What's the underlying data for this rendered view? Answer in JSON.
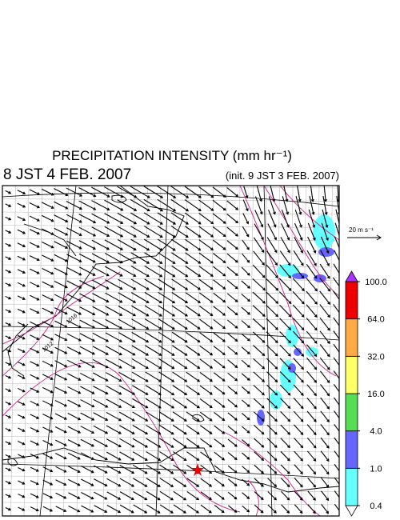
{
  "title": "PRECIPITATION INTENSITY (mm hr⁻¹)",
  "valid_time": "8 JST 4 FEB. 2007",
  "init_time": "(init. 9 JST 3 FEB. 2007)",
  "vector_scale": "20 m s⁻¹",
  "contour_labels": [
    "1016",
    "1012"
  ],
  "colorbar": {
    "levels": [
      {
        "value": 0.4,
        "label": "0.4"
      },
      {
        "value": 1,
        "label": "1.0"
      },
      {
        "value": 4,
        "label": "4.0"
      },
      {
        "value": 16,
        "label": "16.0"
      },
      {
        "value": 32,
        "label": "32.0"
      },
      {
        "value": 64,
        "label": "64.0"
      },
      {
        "value": 100,
        "label": "100.0"
      }
    ],
    "colors": [
      "#ffffff",
      "#66ffff",
      "#6666ff",
      "#55dd55",
      "#ffff66",
      "#ffaa44",
      "#ee0000",
      "#aa33ff"
    ]
  }
}
